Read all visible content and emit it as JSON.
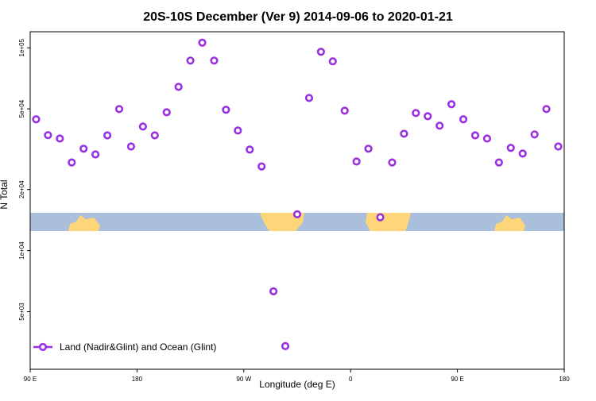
{
  "chart_data": {
    "type": "scatter",
    "title": "20S-10S December (Ver 9)   2014-09-06 to 2020-01-21",
    "x_label": "Longitude (deg E)",
    "y_label": "N Total",
    "log_y": true,
    "legend_position": "bottom-left",
    "xlim": [
      90,
      540
    ],
    "xticks": [
      {
        "value": 90,
        "label": "90 E"
      },
      {
        "value": 180,
        "label": "180"
      },
      {
        "value": 270,
        "label": "90 W"
      },
      {
        "value": 360,
        "label": "0"
      },
      {
        "value": 450,
        "label": "90 E"
      },
      {
        "value": 540,
        "label": "180"
      }
    ],
    "ylim": [
      2600,
      120000
    ],
    "yticks": [
      {
        "value": 100000,
        "label": "1e+05"
      },
      {
        "value": 50000,
        "label": "5e+04"
      },
      {
        "value": 20000,
        "label": "2e+04"
      },
      {
        "value": 10000,
        "label": "1e+04"
      },
      {
        "value": 5000,
        "label": "5e+03"
      }
    ],
    "series": [
      {
        "name": "Land (Nadir&Glint) and Ocean (Glint)",
        "color": "#9b30e0",
        "x": [
          95,
          105,
          115,
          125,
          135,
          145,
          155,
          165,
          175,
          185,
          195,
          205,
          215,
          225,
          235,
          245,
          255,
          265,
          275,
          285,
          295,
          305,
          315,
          325,
          335,
          345,
          355,
          365,
          375,
          385,
          395,
          405,
          415,
          425,
          435,
          445,
          455,
          465,
          475,
          485,
          495,
          505,
          515,
          525,
          535
        ],
        "values": [
          44400,
          37100,
          35700,
          27200,
          31800,
          29800,
          37000,
          49900,
          32600,
          40900,
          37000,
          48100,
          64200,
          86500,
          106000,
          86500,
          49500,
          39100,
          31500,
          26000,
          6300,
          3380,
          15100,
          56600,
          95600,
          85800,
          49000,
          27500,
          31800,
          14600,
          27200,
          37700,
          47700,
          46000,
          41300,
          52700,
          44400,
          37000,
          35700,
          27200,
          32100,
          30100,
          37400,
          49900,
          32600
        ]
      }
    ]
  }
}
